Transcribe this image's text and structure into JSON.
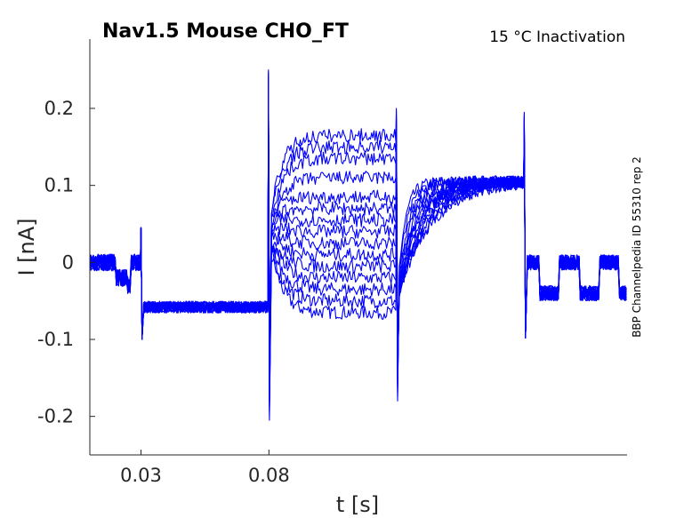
{
  "chart_data": {
    "type": "line",
    "title": "Nav1.5  Mouse  CHO_FT",
    "subtitle": "15 °C  Inactivation",
    "side_label": "BBP Channelpedia ID 55310 rep 2",
    "xlabel": "t [s]",
    "ylabel": "I [nA]",
    "xlim": [
      0.01,
      0.22
    ],
    "ylim": [
      -0.25,
      0.29
    ],
    "x_ticks": [
      0.03,
      0.08
    ],
    "x_tick_labels": [
      "0.03",
      "0.08"
    ],
    "y_ticks": [
      -0.2,
      -0.1,
      0,
      0.1,
      0.2
    ],
    "y_tick_labels": [
      "-0.2",
      "-0.1",
      "0",
      "0.1",
      "0.2"
    ],
    "grid": false,
    "color": "#0000ff",
    "protocol_times": {
      "t_start": 0.01,
      "t_step1": 0.03,
      "t_step2": 0.08,
      "t_step3": 0.13,
      "t_step4": 0.18,
      "t_end": 0.22
    },
    "baseline_pre": 0.0,
    "baseline_hold": -0.058,
    "step2_plateau_levels": [
      -0.065,
      -0.05,
      -0.035,
      -0.02,
      -0.005,
      0.01,
      0.025,
      0.04,
      0.055,
      0.07,
      0.085,
      0.11,
      0.135,
      0.15,
      0.165
    ],
    "step3_plateau": 0.105,
    "step4_levels": [
      0.0,
      -0.04
    ],
    "peaks": {
      "step1_spike": 0.045,
      "step1_dip": -0.1,
      "step2_spike": 0.25,
      "step2_dip": -0.205,
      "step3_spike": 0.2,
      "step3_dip": -0.18,
      "step4_spike": 0.195,
      "step4_dip": -0.098
    }
  }
}
